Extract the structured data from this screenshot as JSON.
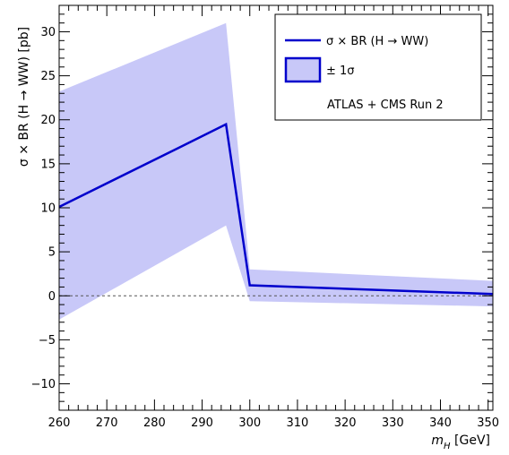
{
  "chart_data": {
    "type": "line",
    "xlabel_main": "m",
    "xlabel_sub": "H",
    "xlabel_unit": " [GeV]",
    "ylabel": "σ × BR (H → WW) [pb]",
    "xlim": [
      260,
      351
    ],
    "ylim": [
      -13,
      33
    ],
    "x_ticks": [
      260,
      270,
      280,
      290,
      300,
      310,
      320,
      330,
      340,
      350
    ],
    "y_ticks": [
      -10,
      -5,
      0,
      5,
      10,
      15,
      20,
      25,
      30
    ],
    "x_tick_labels": [
      "260",
      "270",
      "280",
      "290",
      "300",
      "310",
      "320",
      "330",
      "340",
      "350"
    ],
    "y_tick_labels": [
      "−10",
      "−5",
      "0",
      "5",
      "10",
      "15",
      "20",
      "25",
      "30"
    ],
    "series": [
      {
        "name": "σ × BR (H → WW)",
        "color": "#0000cc",
        "x": [
          260,
          285,
          295,
          300,
          351
        ],
        "y": [
          10.1,
          16.8,
          19.5,
          1.2,
          0.2
        ]
      }
    ],
    "band": {
      "name": "± 1σ",
      "color": "#c8c8f8",
      "x": [
        260,
        295,
        300,
        351
      ],
      "upper": [
        23.2,
        31.0,
        3.0,
        1.7
      ],
      "lower": [
        -2.7,
        8.0,
        -0.6,
        -1.2
      ]
    },
    "reference_line": {
      "y": 0,
      "style": "dashed"
    },
    "legend_position": "top-right",
    "legend_entries": [
      "σ × BR (H → WW)",
      "± 1σ"
    ],
    "annotation": "ATLAS + CMS Run 2",
    "grid": false
  }
}
